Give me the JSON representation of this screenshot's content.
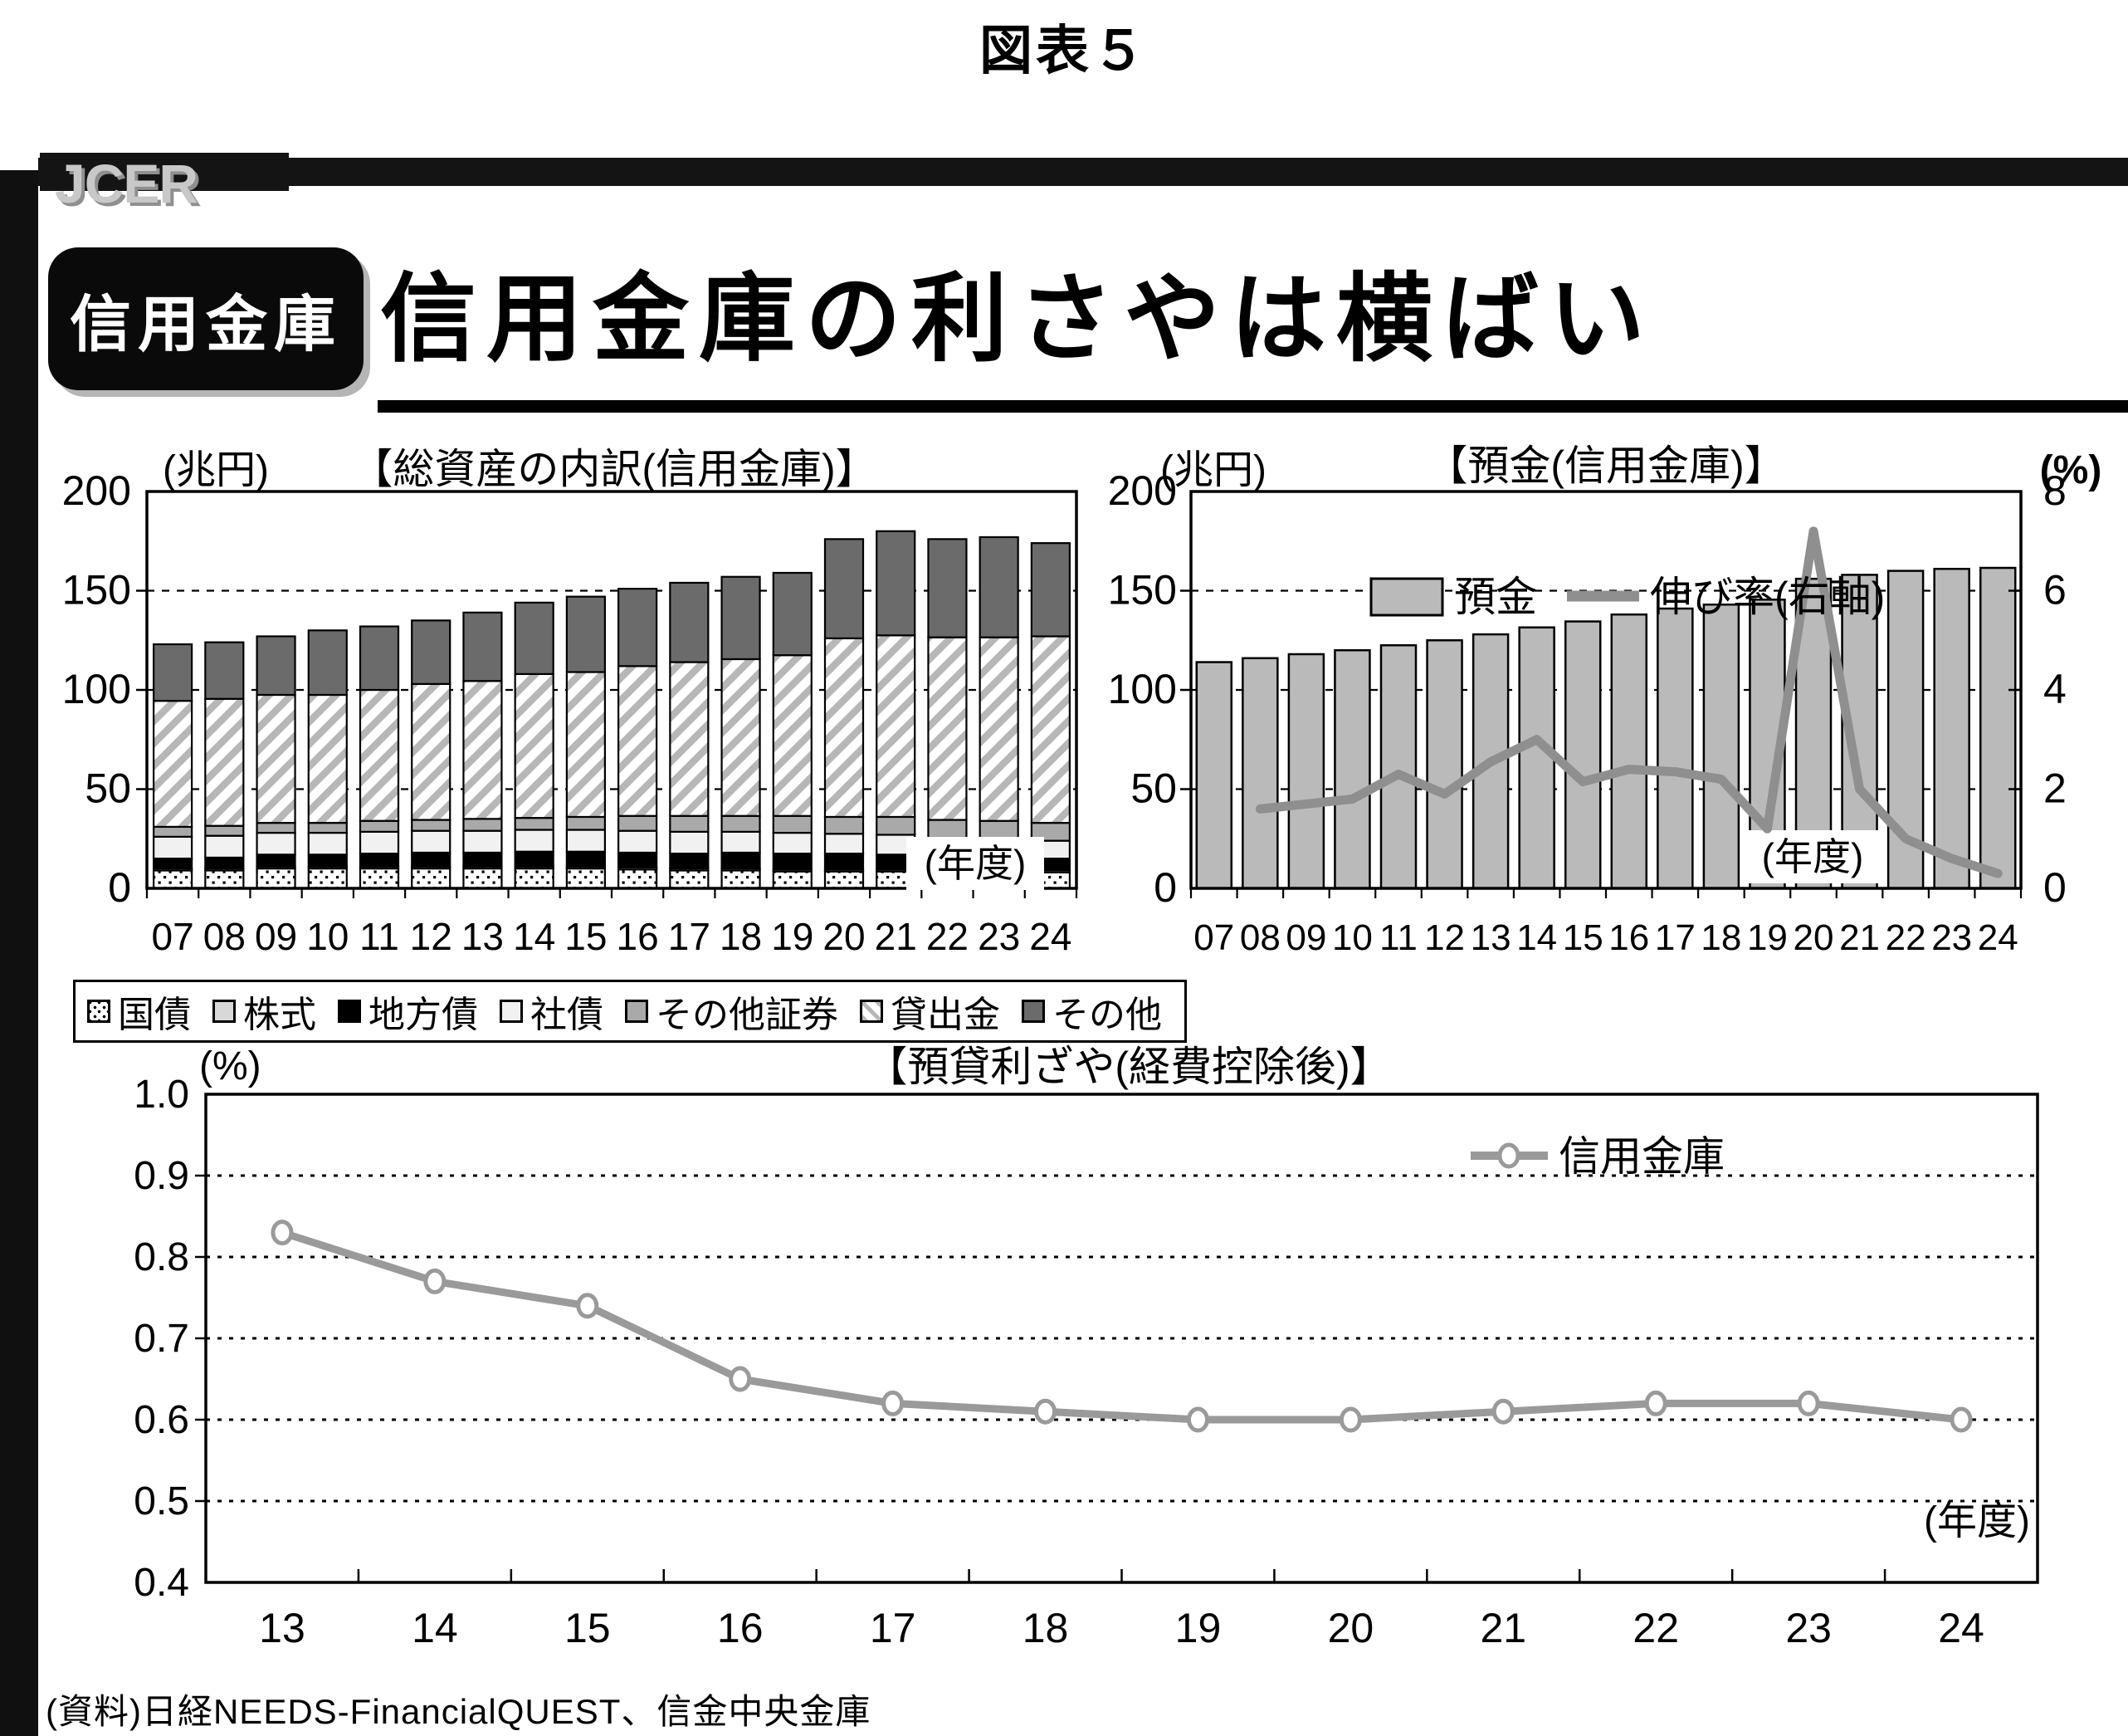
{
  "page": {
    "figure_label": "図表５",
    "logo": "JCER",
    "badge": "信用金庫",
    "headline": "信用金庫の利さやは横ばい",
    "source": "(資料)日経NEEDS-FinancialQUEST、信金中央金庫"
  },
  "colors": {
    "deposit_bar_fill": "#bababa",
    "growth_line": "#8f8f8f",
    "margin_line": "#9a9a9a",
    "hatch_gray": "#b7b7b7",
    "series_styles": [
      "dots",
      "#d8d8d8",
      "#000000",
      "#f1f1f1",
      "#a9a9a9",
      "hatch",
      "#6b6b6b"
    ]
  },
  "chart_data": [
    {
      "id": "assets",
      "type": "bar",
      "subtype": "stacked",
      "title": "【総資産の内訳(信用金庫)】",
      "unit_label": "(兆円)",
      "x_axis_label": "(年度)",
      "ylim": [
        0,
        200
      ],
      "yticks": [
        0,
        50,
        100,
        150,
        200
      ],
      "grid_values": [
        50,
        100,
        150
      ],
      "categories": [
        "07",
        "08",
        "09",
        "10",
        "11",
        "12",
        "13",
        "14",
        "15",
        "16",
        "17",
        "18",
        "19",
        "20",
        "21",
        "22",
        "23",
        "24"
      ],
      "series": [
        {
          "name": "国債",
          "values": [
            9,
            9,
            10,
            10,
            10,
            10,
            10,
            10,
            10,
            9.5,
            9,
            9,
            8.5,
            8.5,
            8.5,
            8,
            8,
            8
          ]
        },
        {
          "name": "株式",
          "values": [
            1,
            1,
            1,
            1,
            1,
            1,
            1,
            1,
            1,
            1,
            1,
            1,
            1,
            1,
            1,
            1,
            1,
            1
          ]
        },
        {
          "name": "地方債",
          "values": [
            5,
            5.5,
            6,
            6,
            6.5,
            7,
            7,
            7.5,
            7.5,
            7.5,
            7.5,
            8,
            8,
            8,
            7.5,
            7,
            6.5,
            6
          ]
        },
        {
          "name": "社債",
          "values": [
            11,
            11,
            11,
            11,
            11,
            11,
            11,
            11,
            11,
            11,
            11,
            10.5,
            10.5,
            10,
            10,
            9.5,
            9.5,
            9
          ]
        },
        {
          "name": "その他証券",
          "values": [
            5,
            5,
            5,
            5,
            5.5,
            5.5,
            6,
            6,
            6.5,
            7.5,
            8,
            8,
            8.5,
            8.5,
            9,
            9,
            9,
            9
          ]
        },
        {
          "name": "貸出金",
          "values": [
            63.5,
            64,
            64.5,
            64.5,
            66,
            68.5,
            69.5,
            72.5,
            73,
            75.5,
            77.5,
            79,
            81,
            90,
            91.5,
            92,
            92.5,
            94
          ]
        },
        {
          "name": "その他",
          "values": [
            28.5,
            28.5,
            29.5,
            32.5,
            32,
            32,
            34.5,
            36,
            38,
            39,
            40,
            41.5,
            41.5,
            50,
            52.5,
            49.5,
            50.5,
            47
          ]
        }
      ]
    },
    {
      "id": "deposits",
      "type": "bar",
      "subtype": "bar-and-line",
      "title": "【預金(信用金庫)】",
      "unit_label_left": "(兆円)",
      "unit_label_right": "(%)",
      "x_axis_label": "(年度)",
      "ylim_left": [
        0,
        200
      ],
      "yticks_left": [
        0,
        50,
        100,
        150,
        200
      ],
      "ylim_right": [
        0,
        8
      ],
      "yticks_right": [
        0,
        2,
        4,
        6,
        8
      ],
      "grid_values": [
        50,
        100,
        150
      ],
      "categories": [
        "07",
        "08",
        "09",
        "10",
        "11",
        "12",
        "13",
        "14",
        "15",
        "16",
        "17",
        "18",
        "19",
        "20",
        "21",
        "22",
        "23",
        "24"
      ],
      "bar_series": {
        "name": "預金",
        "values": [
          114,
          116,
          118,
          120,
          122.5,
          125,
          128,
          131.5,
          134.5,
          138,
          141,
          143,
          145.5,
          156,
          158,
          160,
          161,
          161.5
        ]
      },
      "line_series": {
        "name": "伸び率(右軸)",
        "values": [
          null,
          1.6,
          1.7,
          1.8,
          2.3,
          1.9,
          2.55,
          3.0,
          2.15,
          2.4,
          2.35,
          2.2,
          1.2,
          7.2,
          2.0,
          1.0,
          0.6,
          0.3
        ]
      }
    },
    {
      "id": "margin",
      "type": "line",
      "title": "【預貸利ざや(経費控除後)】",
      "unit_label": "(%)",
      "x_axis_label": "(年度)",
      "legend": "信用金庫",
      "ylim": [
        0.4,
        1.0
      ],
      "yticks": [
        0.4,
        0.5,
        0.6,
        0.7,
        0.8,
        0.9,
        1.0
      ],
      "grid_values": [
        0.5,
        0.6,
        0.7,
        0.8,
        0.9
      ],
      "categories": [
        "13",
        "14",
        "15",
        "16",
        "17",
        "18",
        "19",
        "20",
        "21",
        "22",
        "23",
        "24"
      ],
      "values": [
        0.83,
        0.77,
        0.74,
        0.65,
        0.62,
        0.61,
        0.6,
        0.6,
        0.61,
        0.62,
        0.62,
        0.6
      ]
    }
  ]
}
